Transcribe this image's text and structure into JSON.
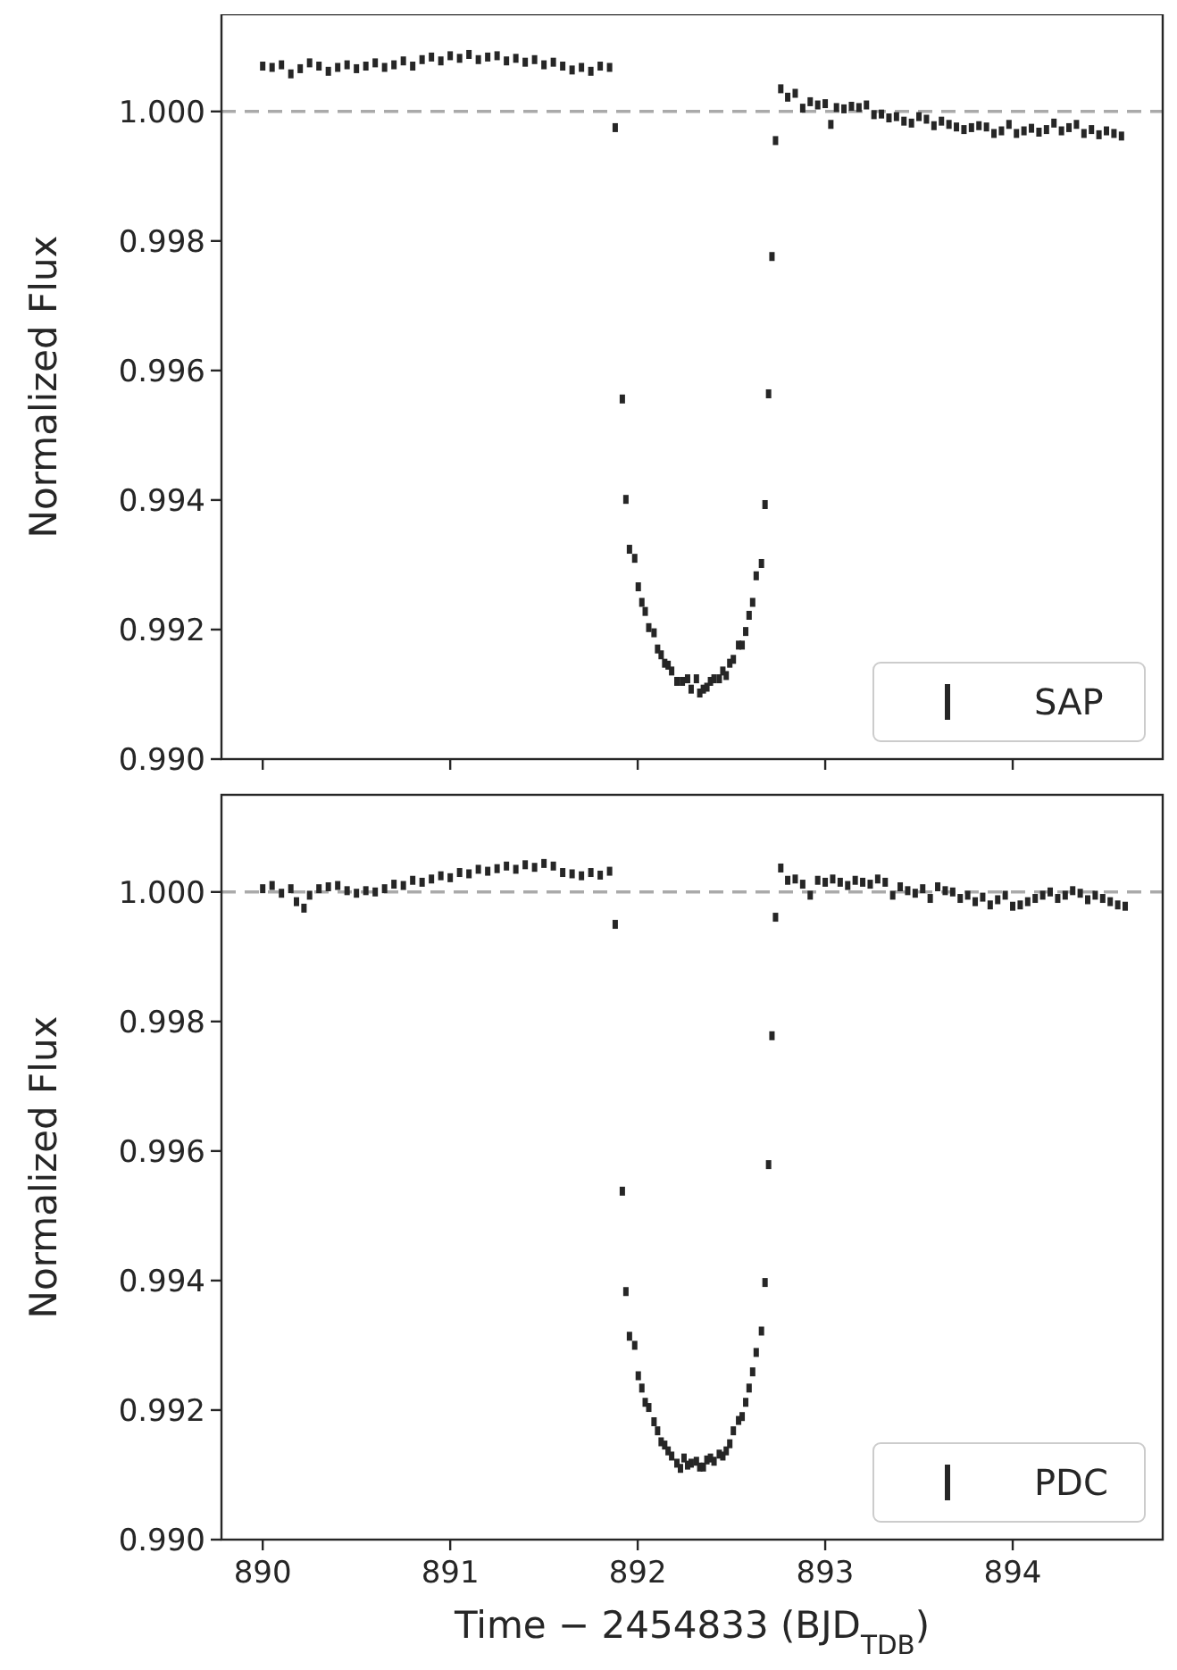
{
  "chart_data": [
    {
      "type": "scatter",
      "ylabel": "Normalized Flux",
      "xlim": [
        889.78,
        894.8
      ],
      "xticks": [
        890,
        891,
        892,
        893,
        894
      ],
      "ylim": [
        0.99,
        1.0015
      ],
      "yticks": [
        {
          "value": 0.99,
          "label": "0.990"
        },
        {
          "value": 0.992,
          "label": "0.992"
        },
        {
          "value": 0.994,
          "label": "0.994"
        },
        {
          "value": 0.996,
          "label": "0.996"
        },
        {
          "value": 0.998,
          "label": "0.998"
        },
        {
          "value": 1.0,
          "label": "1.000"
        }
      ],
      "tick_labels": "y",
      "legend": "bottom right",
      "marker": "square",
      "ref_lines": [
        {
          "axis": "y",
          "value": 1.0,
          "color": "#aaaaaa",
          "line_style": "dashed"
        }
      ],
      "series": [
        {
          "name": "SAP",
          "color": "#262626",
          "x": [
            890.0,
            890.05,
            890.1,
            890.15,
            890.2,
            890.25,
            890.3,
            890.35,
            890.4,
            890.45,
            890.5,
            890.55,
            890.6,
            890.65,
            890.7,
            890.75,
            890.8,
            890.85,
            890.9,
            890.95,
            891.0,
            891.05,
            891.1,
            891.15,
            891.2,
            891.25,
            891.3,
            891.35,
            891.4,
            891.45,
            891.5,
            891.55,
            891.6,
            891.65,
            891.7,
            891.75,
            891.8,
            891.85,
            891.88,
            891.918,
            891.937,
            891.956,
            891.984,
            892.003,
            892.022,
            892.04,
            892.059,
            892.087,
            892.106,
            892.125,
            892.144,
            892.162,
            892.181,
            892.209,
            892.238,
            892.266,
            892.285,
            892.313,
            892.331,
            892.35,
            892.369,
            892.388,
            892.407,
            892.435,
            892.454,
            892.472,
            892.491,
            892.51,
            892.538,
            892.557,
            892.576,
            892.594,
            892.613,
            892.632,
            892.66,
            892.679,
            892.698,
            892.716,
            892.735,
            892.763,
            892.8,
            892.84,
            892.88,
            892.92,
            892.96,
            893.0,
            893.03,
            893.06,
            893.1,
            893.14,
            893.18,
            893.22,
            893.26,
            893.3,
            893.34,
            893.38,
            893.42,
            893.46,
            893.5,
            893.54,
            893.58,
            893.62,
            893.66,
            893.7,
            893.74,
            893.78,
            893.82,
            893.86,
            893.9,
            893.94,
            893.98,
            894.02,
            894.06,
            894.1,
            894.14,
            894.18,
            894.22,
            894.26,
            894.3,
            894.34,
            894.38,
            894.42,
            894.46,
            894.5,
            894.54,
            894.58
          ],
          "values": [
            1.0007,
            1.00068,
            1.00072,
            1.00058,
            1.00066,
            1.00075,
            1.0007,
            1.00062,
            1.00068,
            1.00072,
            1.00066,
            1.0007,
            1.00075,
            1.00068,
            1.00072,
            1.00078,
            1.0007,
            1.0008,
            1.00084,
            1.00078,
            1.00086,
            1.00082,
            1.00088,
            1.0008,
            1.00084,
            1.00086,
            1.00078,
            1.00082,
            1.00076,
            1.0008,
            1.00072,
            1.00076,
            1.0007,
            1.00064,
            1.00068,
            1.00062,
            1.0007,
            1.00068,
            0.99975,
            0.99556,
            0.99401,
            0.99324,
            0.9931,
            0.99266,
            0.99242,
            0.99228,
            0.99203,
            0.99195,
            0.9917,
            0.99161,
            0.99148,
            0.99145,
            0.99136,
            0.9912,
            0.9912,
            0.99124,
            0.99108,
            0.99124,
            0.99102,
            0.99108,
            0.99111,
            0.9912,
            0.99124,
            0.99124,
            0.99136,
            0.99129,
            0.99148,
            0.99154,
            0.99176,
            0.99176,
            0.99197,
            0.99222,
            0.99242,
            0.99283,
            0.99302,
            0.99393,
            0.99564,
            0.99776,
            0.99955,
            1.00035,
            1.00022,
            1.00028,
            1.00005,
            1.00015,
            1.0001,
            1.00012,
            0.9998,
            1.00006,
            1.00004,
            1.00008,
            1.00006,
            1.0001,
            0.99995,
            0.99996,
            0.9999,
            0.99992,
            0.99985,
            0.99982,
            0.99992,
            0.99988,
            0.99978,
            0.99985,
            0.9998,
            0.99976,
            0.99972,
            0.99975,
            0.99978,
            0.99976,
            0.99966,
            0.9997,
            0.9998,
            0.99966,
            0.9997,
            0.99974,
            0.99968,
            0.99972,
            0.99982,
            0.9997,
            0.99975,
            0.9998,
            0.99966,
            0.99972,
            0.99964,
            0.9997,
            0.99966,
            0.99962
          ]
        }
      ]
    },
    {
      "type": "scatter",
      "xlabel": "Time − 2454833 (BJD$_{TDB}$)",
      "ylabel": "Normalized Flux",
      "xlim": [
        889.78,
        894.8
      ],
      "xticks": [
        890,
        891,
        892,
        893,
        894
      ],
      "ylim": [
        0.99,
        1.0015
      ],
      "yticks": [
        {
          "value": 0.99,
          "label": "0.990"
        },
        {
          "value": 0.992,
          "label": "0.992"
        },
        {
          "value": 0.994,
          "label": "0.994"
        },
        {
          "value": 0.996,
          "label": "0.996"
        },
        {
          "value": 0.998,
          "label": "0.998"
        },
        {
          "value": 1.0,
          "label": "1.000"
        }
      ],
      "legend": "bottom right",
      "marker": "square",
      "ref_lines": [
        {
          "axis": "y",
          "value": 1.0,
          "color": "#aaaaaa",
          "line_style": "dashed"
        }
      ],
      "series": [
        {
          "name": "PDC",
          "color": "#262626",
          "x": [
            890.0,
            890.05,
            890.1,
            890.15,
            890.18,
            890.22,
            890.25,
            890.3,
            890.35,
            890.4,
            890.45,
            890.5,
            890.55,
            890.6,
            890.65,
            890.7,
            890.75,
            890.8,
            890.85,
            890.9,
            890.95,
            891.0,
            891.05,
            891.1,
            891.15,
            891.2,
            891.25,
            891.3,
            891.35,
            891.4,
            891.45,
            891.5,
            891.55,
            891.6,
            891.65,
            891.7,
            891.75,
            891.8,
            891.85,
            891.88,
            891.918,
            891.937,
            891.956,
            891.984,
            892.003,
            892.022,
            892.04,
            892.059,
            892.087,
            892.106,
            892.125,
            892.144,
            892.162,
            892.181,
            892.209,
            892.228,
            892.247,
            892.266,
            892.285,
            892.313,
            892.331,
            892.35,
            892.369,
            892.388,
            892.407,
            892.435,
            892.454,
            892.472,
            892.491,
            892.51,
            892.538,
            892.557,
            892.576,
            892.594,
            892.613,
            892.632,
            892.66,
            892.679,
            892.698,
            892.716,
            892.735,
            892.763,
            892.8,
            892.84,
            892.88,
            892.92,
            892.96,
            893.0,
            893.04,
            893.08,
            893.12,
            893.16,
            893.2,
            893.24,
            893.28,
            893.32,
            893.36,
            893.4,
            893.44,
            893.48,
            893.52,
            893.56,
            893.6,
            893.64,
            893.68,
            893.72,
            893.76,
            893.8,
            893.84,
            893.88,
            893.92,
            893.96,
            894.0,
            894.04,
            894.08,
            894.12,
            894.16,
            894.2,
            894.24,
            894.28,
            894.32,
            894.36,
            894.4,
            894.44,
            894.48,
            894.52,
            894.56,
            894.6
          ],
          "values": [
            1.00005,
            1.0001,
            0.99998,
            1.00005,
            0.99985,
            0.99975,
            0.99995,
            1.00005,
            1.00008,
            1.0001,
            1.00002,
            0.99998,
            1.00002,
            1.0,
            1.00005,
            1.00012,
            1.0001,
            1.00018,
            1.00015,
            1.0002,
            1.00025,
            1.00022,
            1.0003,
            1.00028,
            1.00035,
            1.00032,
            1.00036,
            1.0004,
            1.00035,
            1.00042,
            1.00038,
            1.00044,
            1.0004,
            1.0003,
            1.00028,
            1.00025,
            1.0003,
            1.00026,
            1.00032,
            0.9995,
            0.99538,
            0.99383,
            0.99314,
            0.993,
            0.99253,
            0.99234,
            0.99212,
            0.99204,
            0.99182,
            0.99168,
            0.99151,
            0.99146,
            0.99137,
            0.99129,
            0.99118,
            0.9911,
            0.99126,
            0.99115,
            0.99118,
            0.99121,
            0.99112,
            0.99112,
            0.99123,
            0.99126,
            0.99121,
            0.99132,
            0.99129,
            0.99137,
            0.99148,
            0.99168,
            0.99184,
            0.9919,
            0.99212,
            0.99234,
            0.99259,
            0.99289,
            0.99322,
            0.99397,
            0.99579,
            0.99778,
            0.99961,
            1.00037,
            1.00018,
            1.0002,
            1.00012,
            0.99995,
            1.00018,
            1.00015,
            1.0002,
            1.00015,
            1.0001,
            1.00018,
            1.00015,
            1.00012,
            1.0002,
            1.00015,
            0.99995,
            1.00008,
            1.00002,
            0.99998,
            1.00005,
            0.9999,
            1.00008,
            1.00002,
            1.0,
            0.9999,
            0.99995,
            0.99985,
            0.99992,
            0.9998,
            0.99988,
            0.99995,
            0.99978,
            0.9998,
            0.99985,
            0.9999,
            0.99995,
            1.0,
            0.9999,
            0.99995,
            1.00002,
            0.99998,
            0.99988,
            0.99995,
            0.9999,
            0.99985,
            0.9998,
            0.99978
          ]
        }
      ]
    }
  ]
}
